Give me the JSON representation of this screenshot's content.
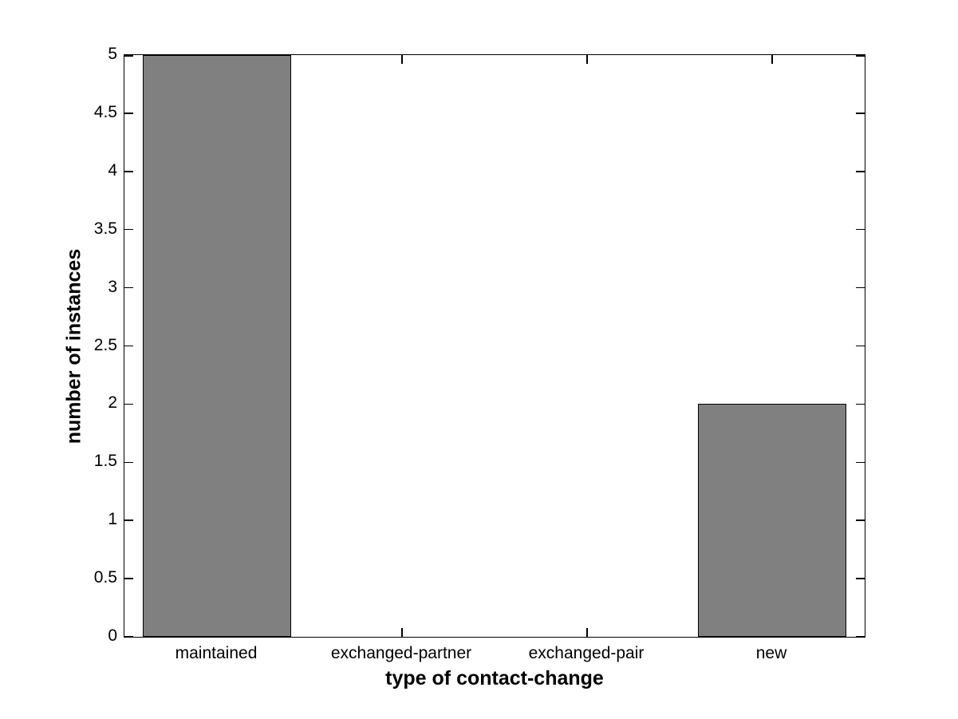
{
  "chart_data": {
    "type": "bar",
    "title": "",
    "xlabel": "type of contact-change",
    "ylabel": "number of instances",
    "categories": [
      "maintained",
      "exchanged-partner",
      "exchanged-pair",
      "new"
    ],
    "values": [
      5,
      0,
      0,
      2
    ],
    "ylim": [
      0,
      5
    ],
    "ytick_step": 0.5,
    "ytick_labels": [
      "0",
      "0.5",
      "1",
      "1.5",
      "2",
      "2.5",
      "3",
      "3.5",
      "4",
      "4.5",
      "5"
    ],
    "grid": false,
    "legend": null,
    "tick_direction": "in",
    "bar_width_fraction": 0.8,
    "bar_color": "#808080",
    "bar_edge_color": "#000000",
    "axis_color": "#000000",
    "background_color": "#ffffff"
  }
}
